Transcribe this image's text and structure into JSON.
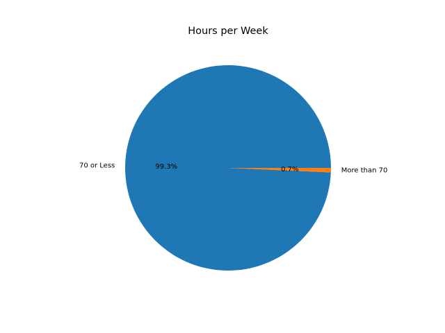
{
  "chart_data": {
    "type": "pie",
    "title": "Hours per Week",
    "slices": [
      {
        "label": "70 or Less",
        "value": 99.3,
        "pct_label": "99.3%",
        "color": "#1f77b4"
      },
      {
        "label": "More than 70",
        "value": 0.7,
        "pct_label": "0.7%",
        "color": "#ff7f0e"
      }
    ],
    "start_angle_deg": 0,
    "direction": "counterclockwise"
  }
}
